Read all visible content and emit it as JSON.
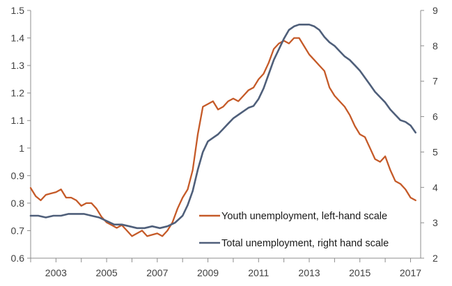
{
  "chart_data": {
    "type": "line",
    "title": "",
    "x_ticks": [
      "2003",
      "2005",
      "2007",
      "2009",
      "2011",
      "2013",
      "2015",
      "2017"
    ],
    "x_range": [
      2002.0,
      2017.4
    ],
    "y_left": {
      "range": [
        0.6,
        1.5
      ],
      "ticks": [
        "0.6",
        "0.7",
        "0.8",
        "0.9",
        "1",
        "1.1",
        "1.2",
        "1.3",
        "1.4",
        "1.5"
      ]
    },
    "y_right": {
      "range": [
        2,
        9
      ],
      "ticks": [
        "2",
        "3",
        "4",
        "5",
        "6",
        "7",
        "8",
        "9"
      ]
    },
    "grid": false,
    "legend_position": "bottom-right",
    "series": [
      {
        "name": "Youth unemployment, left-hand scale",
        "axis": "left",
        "color": "#c55a28",
        "x": [
          2002.0,
          2002.2,
          2002.4,
          2002.6,
          2002.8,
          2003.0,
          2003.2,
          2003.4,
          2003.6,
          2003.8,
          2004.0,
          2004.2,
          2004.4,
          2004.6,
          2004.8,
          2005.0,
          2005.2,
          2005.4,
          2005.6,
          2005.8,
          2006.0,
          2006.2,
          2006.4,
          2006.6,
          2006.8,
          2007.0,
          2007.2,
          2007.4,
          2007.6,
          2007.8,
          2008.0,
          2008.2,
          2008.4,
          2008.6,
          2008.8,
          2009.0,
          2009.2,
          2009.4,
          2009.6,
          2009.8,
          2010.0,
          2010.2,
          2010.4,
          2010.6,
          2010.8,
          2011.0,
          2011.2,
          2011.4,
          2011.6,
          2011.8,
          2012.0,
          2012.2,
          2012.4,
          2012.6,
          2012.8,
          2013.0,
          2013.2,
          2013.4,
          2013.6,
          2013.8,
          2014.0,
          2014.2,
          2014.4,
          2014.6,
          2014.8,
          2015.0,
          2015.2,
          2015.4,
          2015.6,
          2015.8,
          2016.0,
          2016.2,
          2016.4,
          2016.6,
          2016.8,
          2017.0,
          2017.2
        ],
        "values": [
          0.855,
          0.825,
          0.81,
          0.83,
          0.835,
          0.84,
          0.85,
          0.82,
          0.82,
          0.81,
          0.79,
          0.8,
          0.8,
          0.78,
          0.75,
          0.73,
          0.72,
          0.71,
          0.72,
          0.7,
          0.68,
          0.69,
          0.7,
          0.68,
          0.685,
          0.69,
          0.68,
          0.7,
          0.73,
          0.78,
          0.82,
          0.85,
          0.92,
          1.05,
          1.15,
          1.16,
          1.17,
          1.14,
          1.15,
          1.17,
          1.18,
          1.17,
          1.19,
          1.21,
          1.22,
          1.25,
          1.27,
          1.31,
          1.36,
          1.38,
          1.39,
          1.38,
          1.4,
          1.4,
          1.37,
          1.34,
          1.32,
          1.3,
          1.28,
          1.22,
          1.19,
          1.17,
          1.15,
          1.12,
          1.08,
          1.05,
          1.04,
          1.0,
          0.96,
          0.95,
          0.97,
          0.92,
          0.88,
          0.87,
          0.85,
          0.82,
          0.81
        ]
      },
      {
        "name": "Total unemployment, right hand scale",
        "axis": "right",
        "color": "#4f5f7a",
        "x": [
          2002.0,
          2002.3,
          2002.6,
          2002.9,
          2003.2,
          2003.5,
          2003.8,
          2004.1,
          2004.4,
          2004.7,
          2005.0,
          2005.3,
          2005.6,
          2005.9,
          2006.2,
          2006.5,
          2006.8,
          2007.1,
          2007.4,
          2007.7,
          2008.0,
          2008.2,
          2008.4,
          2008.6,
          2008.8,
          2009.0,
          2009.2,
          2009.4,
          2009.6,
          2009.8,
          2010.0,
          2010.2,
          2010.4,
          2010.6,
          2010.8,
          2011.0,
          2011.2,
          2011.4,
          2011.6,
          2011.8,
          2012.0,
          2012.2,
          2012.4,
          2012.6,
          2012.8,
          2013.0,
          2013.2,
          2013.4,
          2013.6,
          2013.8,
          2014.0,
          2014.2,
          2014.4,
          2014.6,
          2014.8,
          2015.0,
          2015.2,
          2015.4,
          2015.6,
          2015.8,
          2016.0,
          2016.2,
          2016.4,
          2016.6,
          2016.8,
          2017.0,
          2017.2
        ],
        "values": [
          3.2,
          3.2,
          3.15,
          3.2,
          3.2,
          3.25,
          3.25,
          3.25,
          3.2,
          3.15,
          3.05,
          2.95,
          2.95,
          2.9,
          2.85,
          2.85,
          2.9,
          2.85,
          2.9,
          3.0,
          3.2,
          3.5,
          3.9,
          4.5,
          5.0,
          5.3,
          5.4,
          5.5,
          5.65,
          5.8,
          5.95,
          6.05,
          6.15,
          6.25,
          6.3,
          6.5,
          6.8,
          7.2,
          7.6,
          7.9,
          8.2,
          8.45,
          8.55,
          8.6,
          8.6,
          8.6,
          8.55,
          8.45,
          8.25,
          8.1,
          8.0,
          7.85,
          7.7,
          7.6,
          7.45,
          7.3,
          7.1,
          6.9,
          6.7,
          6.55,
          6.4,
          6.2,
          6.05,
          5.9,
          5.85,
          5.75,
          5.55
        ]
      }
    ]
  }
}
